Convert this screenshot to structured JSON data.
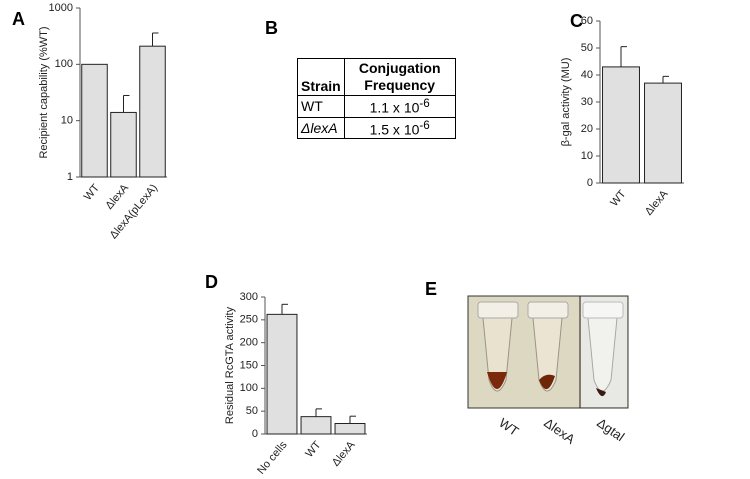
{
  "chart_data": [
    {
      "panel": "A",
      "type": "bar",
      "y_label": "Recipient capability (%WT)",
      "categories": [
        "WT",
        "ΔlexA",
        "ΔlexA(pLexA)"
      ],
      "values": [
        100,
        14,
        210
      ],
      "errors": [
        null,
        14,
        150
      ],
      "color": "#e0e0e0",
      "ylim": [
        1,
        1000
      ],
      "yticks": [
        1,
        10,
        100,
        1000
      ],
      "log_scale": true
    },
    {
      "panel": "C",
      "type": "bar",
      "y_label": "β-gal activity (MU)",
      "categories": [
        "WT",
        "ΔlexA"
      ],
      "values": [
        43,
        37
      ],
      "errors": [
        7.5,
        2.5
      ],
      "color": "#e0e0e0",
      "ylim": [
        0,
        60
      ],
      "yticks": [
        0,
        10,
        20,
        30,
        40,
        50,
        60
      ],
      "log_scale": false
    },
    {
      "panel": "D",
      "type": "bar",
      "y_label": "Residual RcGTA activity",
      "categories": [
        "No cells",
        "WT",
        "ΔlexA"
      ],
      "values": [
        262,
        38,
        23
      ],
      "errors": [
        22,
        17,
        16
      ],
      "color": "#e0e0e0",
      "ylim": [
        0,
        300
      ],
      "yticks": [
        0,
        50,
        100,
        150,
        200,
        250,
        300
      ],
      "log_scale": false
    }
  ],
  "table": {
    "panel": "B",
    "header": [
      "Strain",
      "Conjugation Frequency"
    ],
    "rows": [
      [
        "WT",
        {
          "base": "1.1 x 10",
          "exponent": "-6"
        }
      ],
      [
        "ΔlexA",
        {
          "base": "1.5 x 10",
          "exponent": "-6"
        }
      ]
    ]
  },
  "photo": {
    "panel": "E",
    "labels": [
      "WT",
      "ΔlexA",
      "Δgtal"
    ]
  }
}
